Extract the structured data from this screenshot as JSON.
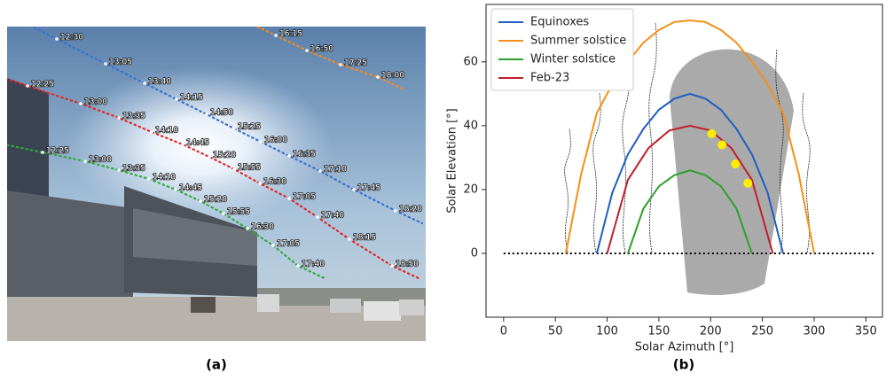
{
  "panel_a": {
    "label": "(a)",
    "tracks": [
      {
        "color": "#f08a24",
        "times": [
          "16:15",
          "16:50",
          "17:25",
          "18:00"
        ]
      },
      {
        "color": "#3d6fd0",
        "times": [
          "12:30",
          "13:05",
          "13:40",
          "14:15",
          "14:50",
          "15:25",
          "16:00",
          "16:35",
          "17:10",
          "17:45",
          "18:20"
        ]
      },
      {
        "color": "#e0282a",
        "times": [
          "12:25",
          "13:00",
          "13:35",
          "14:10",
          "14:45",
          "15:20",
          "15:55",
          "16:30",
          "17:05",
          "17:40",
          "18:15",
          "18:50"
        ]
      },
      {
        "color": "#2eaa3a",
        "times": [
          "12:25",
          "13:00",
          "13:35",
          "14:10",
          "14:45",
          "15:20",
          "15:55",
          "16:30",
          "17:05",
          "17:40"
        ]
      }
    ]
  },
  "chart_data": {
    "type": "line",
    "label": "(b)",
    "x_label": "Solar Azimuth [°]",
    "y_label": "Solar Elevation [°]",
    "xlim": [
      -17,
      366
    ],
    "ylim": [
      -20,
      78
    ],
    "xticks": [
      0,
      50,
      100,
      150,
      200,
      250,
      300,
      350
    ],
    "yticks": [
      0,
      20,
      40,
      60
    ],
    "legend": "upper left",
    "series": [
      {
        "name": "Equinoxes",
        "color": "#1f5fbf",
        "x": [
          90,
          105,
          120,
          135,
          150,
          165,
          180,
          195,
          210,
          225,
          240,
          255,
          270
        ],
        "values": [
          0,
          19,
          31,
          39,
          45,
          48.5,
          50,
          48.5,
          45,
          39,
          31,
          19,
          0
        ]
      },
      {
        "name": "Summer solstice",
        "color": "#f39019",
        "x": [
          60,
          75,
          90,
          105,
          120,
          135,
          150,
          165,
          180,
          195,
          210,
          225,
          240,
          255,
          270,
          285,
          300
        ],
        "values": [
          0,
          25,
          44,
          53,
          60,
          66,
          70,
          72.5,
          73,
          72.5,
          70,
          66,
          60,
          53,
          44,
          25,
          0
        ]
      },
      {
        "name": "Winter solstice",
        "color": "#2ca02c",
        "x": [
          120,
          135,
          150,
          165,
          180,
          195,
          210,
          225,
          240
        ],
        "values": [
          0,
          14,
          21,
          24.5,
          26,
          24.5,
          21,
          14,
          0
        ]
      },
      {
        "name": "Feb-23",
        "color": "#c0202a",
        "x": [
          100,
          120,
          140,
          160,
          180,
          200,
          220,
          240,
          260
        ],
        "values": [
          0,
          23,
          33,
          38.5,
          40,
          38.5,
          33,
          23,
          0
        ]
      }
    ],
    "points": {
      "color": "#ffee00",
      "x": [
        201,
        211,
        224,
        236
      ],
      "values": [
        37.5,
        34,
        28,
        22
      ]
    },
    "horizon": {
      "color": "#000000",
      "x": [
        0,
        360
      ],
      "values": [
        0,
        0
      ]
    }
  }
}
